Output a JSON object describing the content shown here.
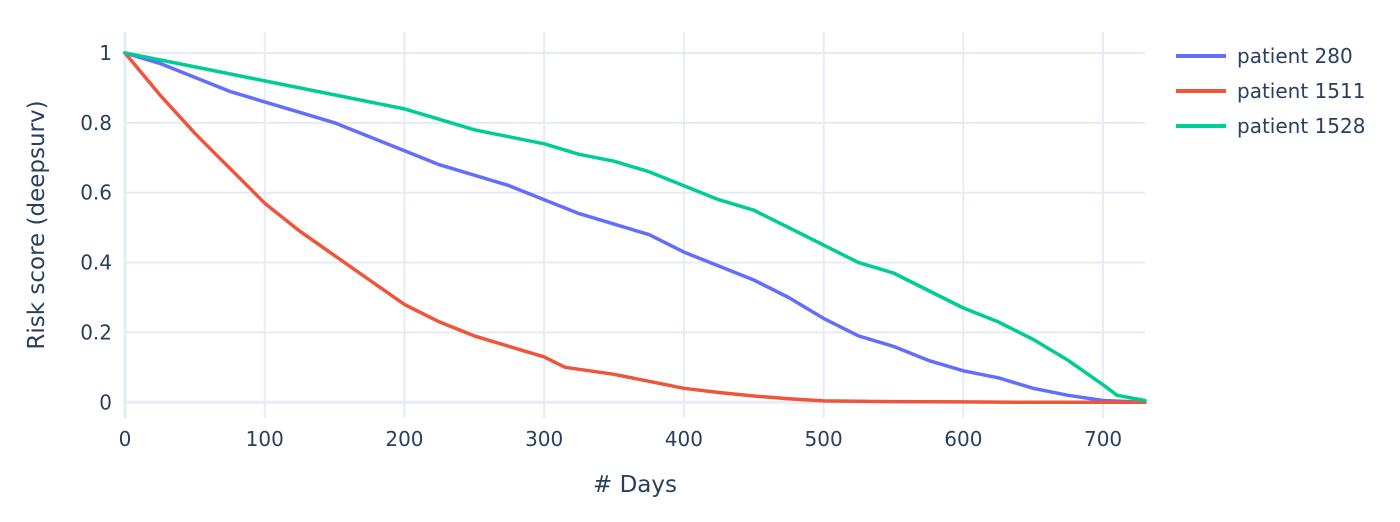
{
  "chart_data": {
    "type": "line",
    "title": "",
    "xlabel": "# Days",
    "ylabel": "Risk score (deepsurv)",
    "xlim": [
      0,
      730
    ],
    "ylim": [
      -0.045,
      1.06
    ],
    "xticks": [
      0,
      100,
      200,
      300,
      400,
      500,
      600,
      700
    ],
    "yticks": [
      0,
      0.2,
      0.4,
      0.6,
      0.8,
      1
    ],
    "ytick_labels": [
      "0",
      "0.2",
      "0.4",
      "0.6",
      "0.8",
      "1"
    ],
    "grid": true,
    "legend_position": "top-right",
    "series": [
      {
        "name": "patient 280",
        "color": "#636efa",
        "x": [
          0,
          25,
          50,
          75,
          100,
          125,
          150,
          175,
          200,
          225,
          250,
          275,
          300,
          325,
          350,
          375,
          400,
          425,
          450,
          475,
          500,
          525,
          550,
          575,
          600,
          625,
          650,
          675,
          700,
          730
        ],
        "y": [
          1.0,
          0.97,
          0.93,
          0.89,
          0.86,
          0.83,
          0.8,
          0.76,
          0.72,
          0.68,
          0.65,
          0.62,
          0.58,
          0.54,
          0.51,
          0.48,
          0.43,
          0.39,
          0.35,
          0.3,
          0.24,
          0.19,
          0.16,
          0.12,
          0.09,
          0.07,
          0.04,
          0.02,
          0.005,
          0.0
        ]
      },
      {
        "name": "patient 1511",
        "color": "#ef553b",
        "x": [
          0,
          25,
          50,
          65,
          75,
          85,
          100,
          125,
          150,
          175,
          200,
          225,
          250,
          275,
          300,
          315,
          350,
          375,
          400,
          425,
          450,
          475,
          500,
          550,
          600,
          650,
          700,
          730
        ],
        "y": [
          1.0,
          0.88,
          0.77,
          0.71,
          0.67,
          0.63,
          0.57,
          0.49,
          0.42,
          0.35,
          0.28,
          0.23,
          0.19,
          0.16,
          0.13,
          0.1,
          0.08,
          0.06,
          0.04,
          0.028,
          0.018,
          0.01,
          0.004,
          0.002,
          0.001,
          0.0,
          0.0,
          0.0
        ]
      },
      {
        "name": "patient 1528",
        "color": "#00cc96",
        "x": [
          0,
          25,
          50,
          75,
          100,
          125,
          150,
          175,
          200,
          225,
          250,
          275,
          300,
          325,
          350,
          375,
          400,
          425,
          450,
          475,
          500,
          525,
          550,
          575,
          600,
          625,
          650,
          675,
          700,
          710,
          730
        ],
        "y": [
          1.0,
          0.98,
          0.96,
          0.94,
          0.92,
          0.9,
          0.88,
          0.86,
          0.84,
          0.81,
          0.78,
          0.76,
          0.74,
          0.71,
          0.69,
          0.66,
          0.62,
          0.58,
          0.55,
          0.5,
          0.45,
          0.4,
          0.37,
          0.32,
          0.27,
          0.23,
          0.18,
          0.12,
          0.05,
          0.02,
          0.005
        ]
      }
    ]
  }
}
